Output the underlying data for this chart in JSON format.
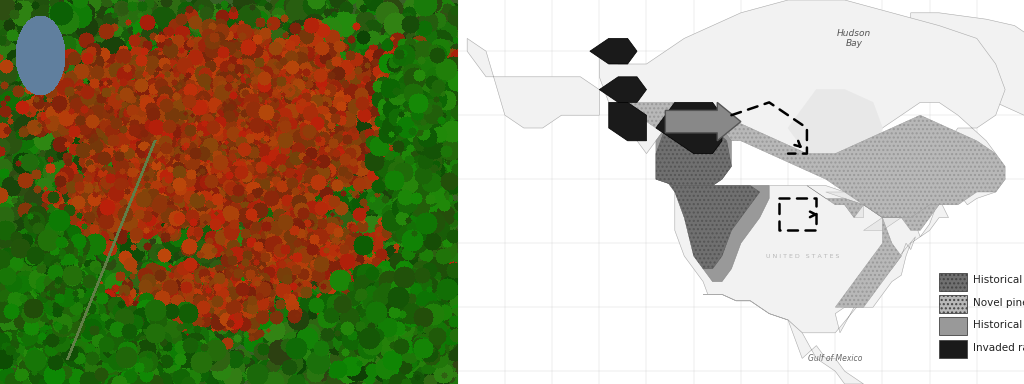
{
  "legend_items": [
    {
      "label": "Historical pines",
      "color": "#707070",
      "hatch": "...."
    },
    {
      "label": "Novel pines",
      "color": "#b8b8b8",
      "hatch": "...."
    },
    {
      "label": "Historical range",
      "color": "#999999",
      "hatch": null
    },
    {
      "label": "Invaded range",
      "color": "#1a1a1a",
      "hatch": null
    }
  ],
  "hudson_bay_label": "Hudson\nBay",
  "gulf_label": "Gulf of Mexico",
  "us_label": "U N I T E D   S T A T E S",
  "legend_fontsize": 7.5,
  "map_bg": "#e8e8e8",
  "ocean_color": "#e8e8e8",
  "land_color": "#f2f2f2",
  "photo_split": 0.447
}
